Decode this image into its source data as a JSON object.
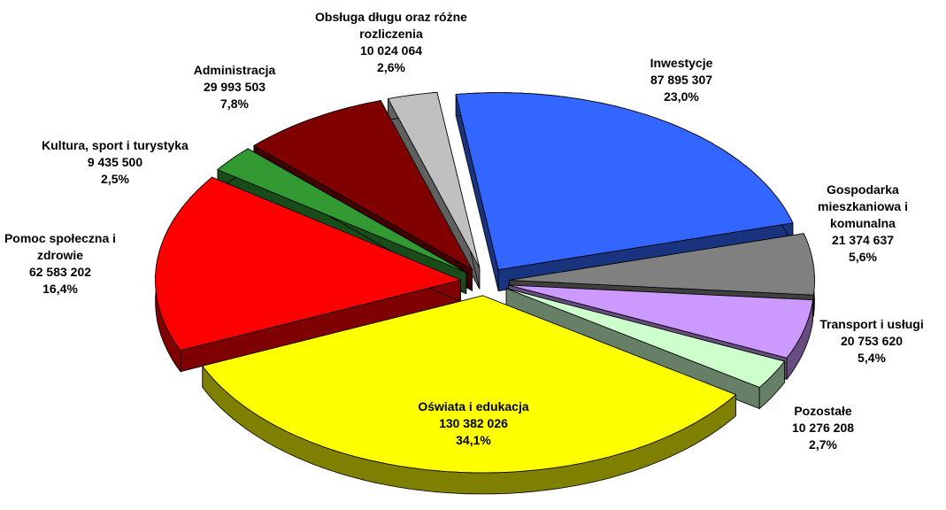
{
  "chart_data": {
    "type": "pie",
    "categories": [
      "Inwestycje",
      "Gospodarka mieszkaniowa i komunalna",
      "Transport i usługi",
      "Pozostałe",
      "Oświata i edukacja",
      "Pomoc społeczna i zdrowie",
      "Kultura, sport i turystyka",
      "Administracja",
      "Obsługa długu oraz różne rozliczenia"
    ],
    "values": [
      87895307,
      21374637,
      20753620,
      10276208,
      130382026,
      62583202,
      9435500,
      29993503,
      10024064
    ],
    "value_labels": [
      "87 895 307",
      "21 374 637",
      "20 753 620",
      "10 276 208",
      "130 382 026",
      "62 583 202",
      "9 435 500",
      "29 993 503",
      "10 024 064"
    ],
    "percent_labels": [
      "23,0%",
      "5,6%",
      "5,4%",
      "2,7%",
      "34,1%",
      "16,4%",
      "2,5%",
      "7,8%",
      "2,6%"
    ],
    "colors": [
      "#3366ff",
      "#808080",
      "#cc99ff",
      "#ccffcc",
      "#ffff00",
      "#ff0000",
      "#339933",
      "#800000",
      "#c0c0c0"
    ]
  }
}
